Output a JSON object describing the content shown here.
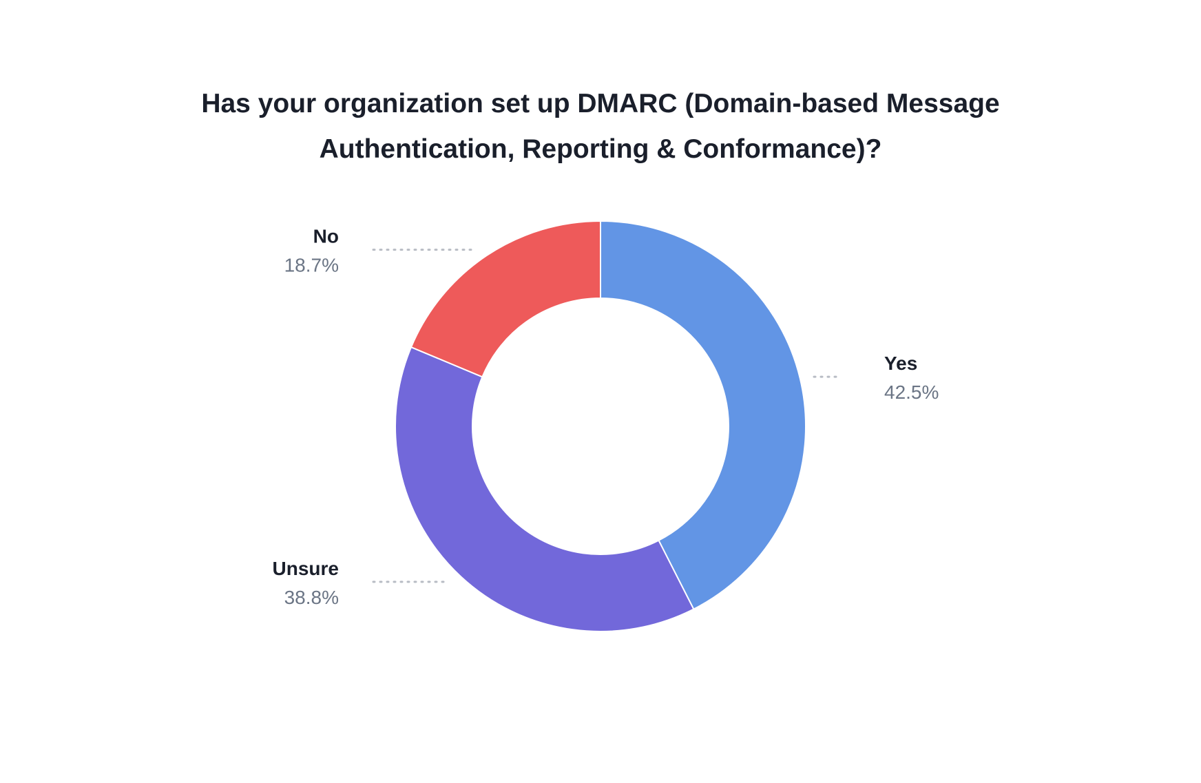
{
  "chart_data": {
    "type": "pie",
    "variant": "donut",
    "title_lines": [
      "Has your organization set up DMARC (Domain-based Message",
      "Authentication, Reporting & Conformance)?"
    ],
    "slices": [
      {
        "label": "Yes",
        "value": 42.5,
        "value_label": "42.5%",
        "color": "#6295e5"
      },
      {
        "label": "Unsure",
        "value": 38.8,
        "value_label": "38.8%",
        "color": "#7268da"
      },
      {
        "label": "No",
        "value": 18.7,
        "value_label": "18.7%",
        "color": "#ee5a5a"
      }
    ],
    "start_angle": "top, clockwise",
    "colors": {
      "label_name": "#1a1f2b",
      "label_value": "#6b7585",
      "leader": "#b8bcc4"
    }
  }
}
